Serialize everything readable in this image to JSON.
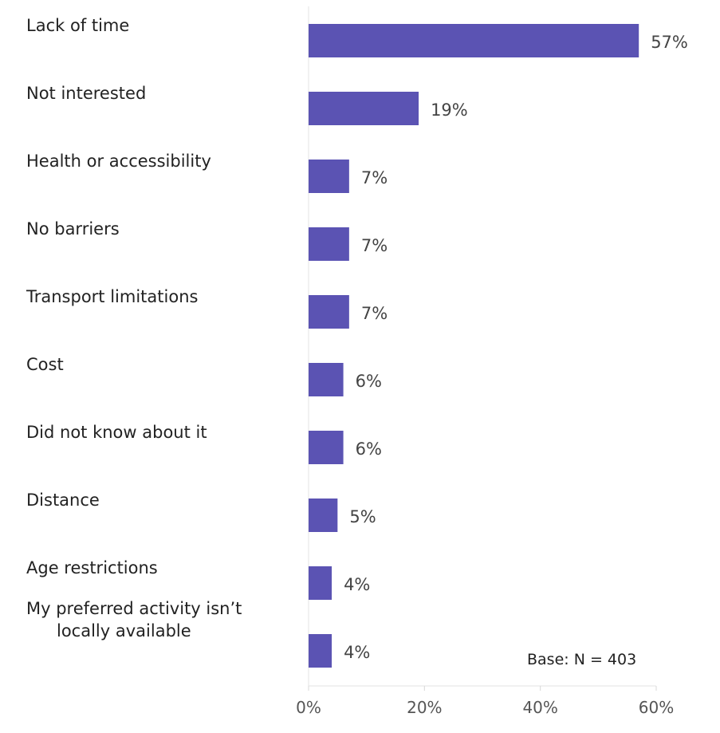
{
  "chart_data": {
    "type": "bar",
    "orientation": "horizontal",
    "categories": [
      "Lack of time",
      "Not interested",
      "Health or accessibility",
      "No barriers",
      "Transport limitations",
      "Cost",
      "Did not know about it",
      "Distance",
      "Age restrictions",
      [
        "My preferred activity isn’t",
        "locally available"
      ]
    ],
    "values": [
      57,
      19,
      7,
      7,
      7,
      6,
      6,
      5,
      4,
      4
    ],
    "value_labels": [
      "57%",
      "19%",
      "7%",
      "7%",
      "7%",
      "6%",
      "6%",
      "5%",
      "4%",
      "4%"
    ],
    "x_ticks": [
      "0%",
      "20%",
      "40%",
      "60%"
    ],
    "xlim": [
      0,
      60
    ],
    "bar_color": "#5b53b3",
    "grid": false,
    "note": "Base: N = 403"
  }
}
